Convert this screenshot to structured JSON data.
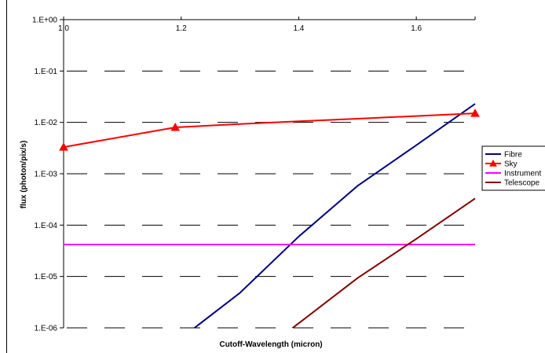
{
  "chart_data": {
    "type": "line",
    "title": "",
    "xlabel": "Cutoff-Wavelength (micron)",
    "ylabel": "flux (photon/pix/s)",
    "xlim": [
      1.0,
      1.7
    ],
    "ylim": [
      1e-06,
      1
    ],
    "yscale": "log",
    "xticks": [
      1.0,
      1.2,
      1.4,
      1.6
    ],
    "xtick_labels": [
      "1.0",
      "1.2",
      "1.4",
      "1.6"
    ],
    "yticks": [
      1,
      0.1,
      0.01,
      0.001,
      0.0001,
      1e-05,
      1e-06
    ],
    "ytick_labels": [
      "1.E+00",
      "1.E-01",
      "1.E-02",
      "1.E-03",
      "1.E-04",
      "1.E-05",
      "1.E-06"
    ],
    "grid": "horizontal dashed",
    "legend_position": "right",
    "series": [
      {
        "name": "Fibre",
        "color": "#000080",
        "marker": "none",
        "x": [
          1.2,
          1.3,
          1.4,
          1.5,
          1.6,
          1.7
        ],
        "y": [
          6.3e-07,
          4.8e-06,
          6e-05,
          0.00058,
          0.0036,
          0.023
        ]
      },
      {
        "name": "Sky",
        "color": "#ff0000",
        "marker": "triangle",
        "marker_x": [
          1.0,
          1.19,
          1.7
        ],
        "x": [
          1.0,
          1.19,
          1.3,
          1.4,
          1.5,
          1.6,
          1.7
        ],
        "y": [
          0.0033,
          0.008,
          0.0093,
          0.0105,
          0.0118,
          0.0133,
          0.015
        ]
      },
      {
        "name": "Instrument",
        "color": "#ff00ff",
        "marker": "none",
        "x": [
          1.0,
          1.7
        ],
        "y": [
          4.2e-05,
          4.2e-05
        ]
      },
      {
        "name": "Telescope",
        "color": "#800000",
        "marker": "none",
        "x": [
          1.38,
          1.5,
          1.6,
          1.7
        ],
        "y": [
          8.2e-07,
          9.3e-06,
          5.4e-05,
          0.00033
        ]
      }
    ]
  }
}
